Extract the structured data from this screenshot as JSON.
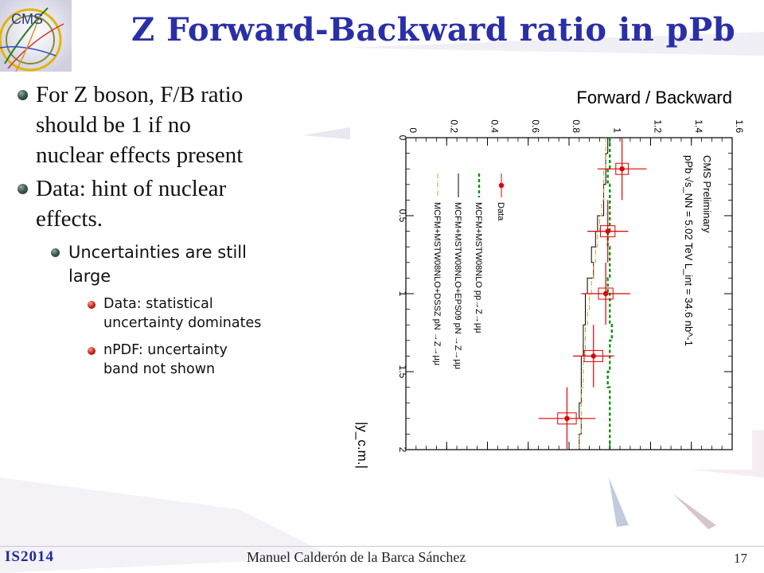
{
  "slide": {
    "title": "Z Forward-Backward ratio in pPb",
    "logo": "CMS",
    "bullets": [
      {
        "lines": [
          "For Z boson, F/B ratio",
          "should be 1 if no",
          "nuclear effects present"
        ]
      },
      {
        "lines": [
          "Data: hint of nuclear",
          "effects."
        ]
      }
    ],
    "sub_bullet": {
      "lines": [
        "Uncertainties are still",
        "large"
      ]
    },
    "sub_sub_bullets": [
      {
        "lines": [
          "Data: statistical",
          "uncertainty dominates"
        ]
      },
      {
        "lines": [
          "nPDF: uncertainty",
          "band not shown"
        ]
      }
    ],
    "footer": {
      "conference": "IS2014",
      "author": "Manuel Calderón de la Barca Sánchez",
      "page_number": "17"
    }
  },
  "chart_data": {
    "type": "line",
    "orientation": "rotated-90",
    "title": "Forward / Backward",
    "xlabel": "|y_c.m.|",
    "x_tick_labels": [
      "0",
      "0.5",
      "1",
      "1.5",
      "2"
    ],
    "xlim": [
      0,
      2
    ],
    "y_tick_labels": [
      "0",
      "0.2",
      "0.4",
      "0.6",
      "0.8",
      "1",
      "1.2",
      "1.4",
      "1.6"
    ],
    "ylim": [
      0,
      1.6
    ],
    "annotations": [
      "CMS Preliminary",
      "pPb √s_NN = 5.02 TeV L_int = 34.6 nb^-1"
    ],
    "legend": [
      {
        "label": "Data",
        "style": "marker",
        "color": "#e00000"
      },
      {
        "label": "MCFM+MSTW08NLO pp→Z→μμ",
        "style": "dashed",
        "color": "#109010"
      },
      {
        "label": "MCFM+MSTW08NLO+EPS09 pN →Z→μμ",
        "style": "solid",
        "color": "#000000"
      },
      {
        "label": "MCFM+MSTW08NLO+DSSZ pN →Z→μμ",
        "style": "dashdot",
        "color": "#c8a030"
      }
    ],
    "series": [
      {
        "name": "Data",
        "x": [
          0.2,
          0.6,
          1.0,
          1.4,
          1.8
        ],
        "y": [
          1.06,
          0.99,
          0.98,
          0.92,
          0.79
        ],
        "xerr": [
          0.2,
          0.2,
          0.2,
          0.2,
          0.2
        ],
        "yerr": [
          0.12,
          0.1,
          0.12,
          0.1,
          0.14
        ],
        "syst": [
          0.015,
          0.02,
          0.02,
          0.03,
          0.03
        ]
      },
      {
        "name": "MCFM+MSTW08NLO pp→Z→μμ",
        "x": [
          0,
          0.1,
          0.2,
          0.3,
          0.4,
          0.5,
          0.6,
          0.7,
          0.8,
          0.9,
          1.0,
          1.1,
          1.2,
          1.3,
          1.4,
          1.5,
          1.6,
          1.7,
          1.8,
          1.9,
          2.0
        ],
        "y": [
          1.0,
          1.0,
          0.99,
          1.0,
          1.0,
          1.0,
          0.99,
          1.0,
          1.0,
          0.99,
          1.0,
          1.0,
          1.01,
          1.0,
          1.0,
          0.99,
          1.0,
          1.0,
          1.0,
          1.0,
          1.0
        ]
      },
      {
        "name": "MCFM+MSTW08NLO+EPS09 pN →Z→μμ",
        "x": [
          0,
          0.1,
          0.2,
          0.3,
          0.4,
          0.5,
          0.6,
          0.7,
          0.8,
          0.9,
          1.0,
          1.1,
          1.2,
          1.3,
          1.4,
          1.5,
          1.6,
          1.7,
          1.8,
          1.9,
          2.0
        ],
        "y": [
          0.99,
          0.98,
          0.98,
          0.97,
          0.97,
          0.94,
          0.93,
          0.91,
          0.92,
          0.89,
          0.88,
          0.88,
          0.87,
          0.87,
          0.86,
          0.86,
          0.86,
          0.85,
          0.86,
          0.85,
          0.85
        ]
      },
      {
        "name": "MCFM+MSTW08NLO+DSSZ pN →Z→μμ",
        "x": [
          0,
          0.1,
          0.2,
          0.3,
          0.4,
          0.5,
          0.6,
          0.7,
          0.8,
          0.9,
          1.0,
          1.1,
          1.2,
          1.3,
          1.4,
          1.5,
          1.6,
          1.7,
          1.8,
          1.9,
          2.0
        ],
        "y": [
          0.98,
          0.98,
          0.97,
          0.97,
          0.96,
          0.95,
          0.94,
          0.93,
          0.92,
          0.91,
          0.9,
          0.89,
          0.88,
          0.88,
          0.87,
          0.87,
          0.86,
          0.86,
          0.86,
          0.85,
          0.85
        ]
      }
    ],
    "grid": false
  }
}
